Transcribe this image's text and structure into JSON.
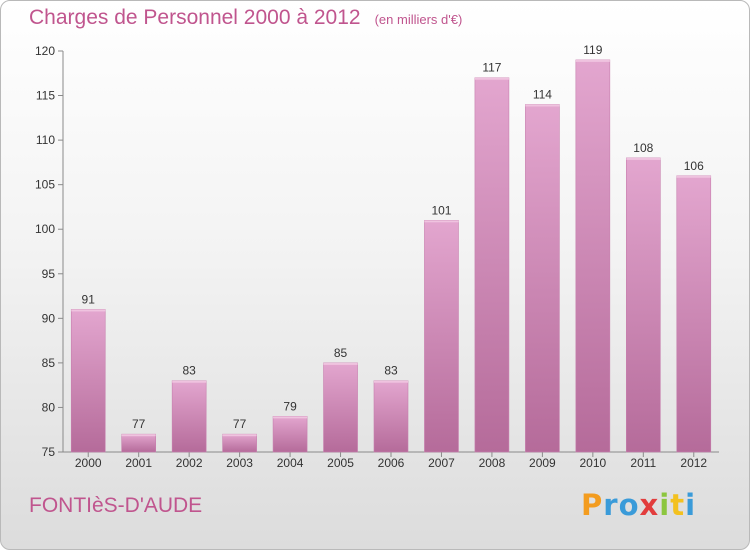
{
  "header": {
    "title": "Charges de Personnel 2000 à 2012",
    "unit": "(en milliers d'€)"
  },
  "footer": {
    "commune": "FONTIèS-D'AUDE"
  },
  "logo": {
    "letters": [
      "P",
      "r",
      "o",
      "x",
      "i",
      "t",
      "i"
    ],
    "colors": [
      "#f39c1f",
      "#3a9bd9",
      "#3a9bd9",
      "#e23d3d",
      "#8cc63f",
      "#f3c11f",
      "#3a9bd9"
    ]
  },
  "chart_data": {
    "type": "bar",
    "categories": [
      "2000",
      "2001",
      "2002",
      "2003",
      "2004",
      "2005",
      "2006",
      "2007",
      "2008",
      "2009",
      "2010",
      "2011",
      "2012"
    ],
    "values": [
      91,
      77,
      83,
      77,
      79,
      85,
      83,
      101,
      117,
      114,
      119,
      108,
      106
    ],
    "title": "Charges de Personnel 2000 à 2012",
    "xlabel": "",
    "ylabel": "",
    "ylim": [
      75,
      120
    ],
    "yticks": [
      75,
      80,
      85,
      90,
      95,
      100,
      105,
      110,
      115,
      120
    ],
    "grid": false,
    "bar_color": "#d98fbe"
  }
}
